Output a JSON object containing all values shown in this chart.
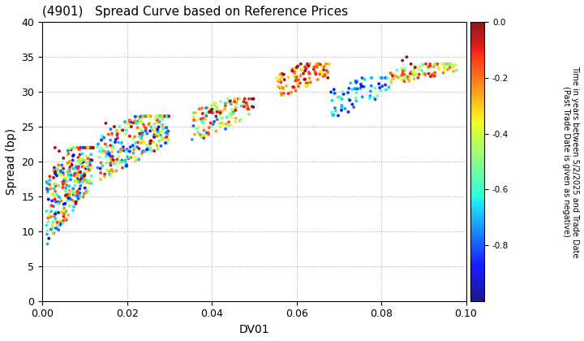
{
  "title": "(4901)   Spread Curve based on Reference Prices",
  "xlabel": "DV01",
  "ylabel": "Spread (bp)",
  "xlim": [
    0.0,
    0.1
  ],
  "ylim": [
    0,
    40
  ],
  "xticks": [
    0.0,
    0.02,
    0.04,
    0.06,
    0.08,
    0.1
  ],
  "yticks": [
    0,
    5,
    10,
    15,
    20,
    25,
    30,
    35,
    40
  ],
  "colorbar_label": "Time in years between 5/2/2025 and Trade Date\n(Past Trade Date is given as negative)",
  "colorbar_ticks": [
    0.0,
    -0.2,
    -0.4,
    -0.6,
    -0.8
  ],
  "cmap": "jet",
  "vmin": -1.0,
  "vmax": 0.0,
  "background_color": "#ffffff",
  "grid_color": "#aaaaaa",
  "marker_size": 8,
  "alpha": 0.9,
  "clusters": [
    {
      "dv01_lo": 0.001,
      "dv01_hi": 0.012,
      "spread_lo": 8.0,
      "spread_hi": 22.0,
      "n": 300,
      "c_lo": -0.95,
      "c_hi": -0.01
    },
    {
      "dv01_lo": 0.013,
      "dv01_hi": 0.03,
      "spread_lo": 17.0,
      "spread_hi": 26.5,
      "n": 250,
      "c_lo": -0.9,
      "c_hi": -0.01
    },
    {
      "dv01_lo": 0.035,
      "dv01_hi": 0.05,
      "spread_lo": 22.5,
      "spread_hi": 29.0,
      "n": 120,
      "c_lo": -0.8,
      "c_hi": -0.01
    },
    {
      "dv01_lo": 0.055,
      "dv01_hi": 0.068,
      "spread_lo": 29.0,
      "spread_hi": 34.0,
      "n": 90,
      "c_lo": -0.4,
      "c_hi": -0.01
    },
    {
      "dv01_lo": 0.068,
      "dv01_hi": 0.082,
      "spread_lo": 26.0,
      "spread_hi": 32.0,
      "n": 70,
      "c_lo": -0.95,
      "c_hi": -0.5
    },
    {
      "dv01_lo": 0.082,
      "dv01_hi": 0.098,
      "spread_lo": 31.0,
      "spread_hi": 34.0,
      "n": 90,
      "c_lo": -0.6,
      "c_hi": -0.05
    }
  ],
  "extra_points": {
    "x": [
      0.003,
      0.004,
      0.005,
      0.007,
      0.009,
      0.01,
      0.003,
      0.005,
      0.015,
      0.017,
      0.019,
      0.021,
      0.023,
      0.04,
      0.041,
      0.042,
      0.057,
      0.059,
      0.06,
      0.061,
      0.062,
      0.085,
      0.086,
      0.087,
      0.088
    ],
    "y": [
      22.0,
      21.5,
      20.5,
      19.5,
      18.5,
      18.0,
      18.5,
      19.0,
      25.5,
      25.0,
      24.5,
      25.0,
      24.0,
      27.5,
      26.5,
      27.0,
      32.5,
      33.0,
      33.5,
      34.0,
      33.0,
      34.5,
      35.0,
      34.0,
      33.5
    ],
    "c": [
      -0.02,
      -0.01,
      0.0,
      -0.02,
      -0.01,
      0.0,
      -0.03,
      -0.02,
      -0.01,
      0.0,
      -0.02,
      -0.01,
      -0.03,
      0.0,
      -0.01,
      -0.02,
      0.0,
      -0.01,
      -0.02,
      -0.01,
      0.0,
      -0.01,
      0.0,
      -0.02,
      -0.01
    ]
  }
}
